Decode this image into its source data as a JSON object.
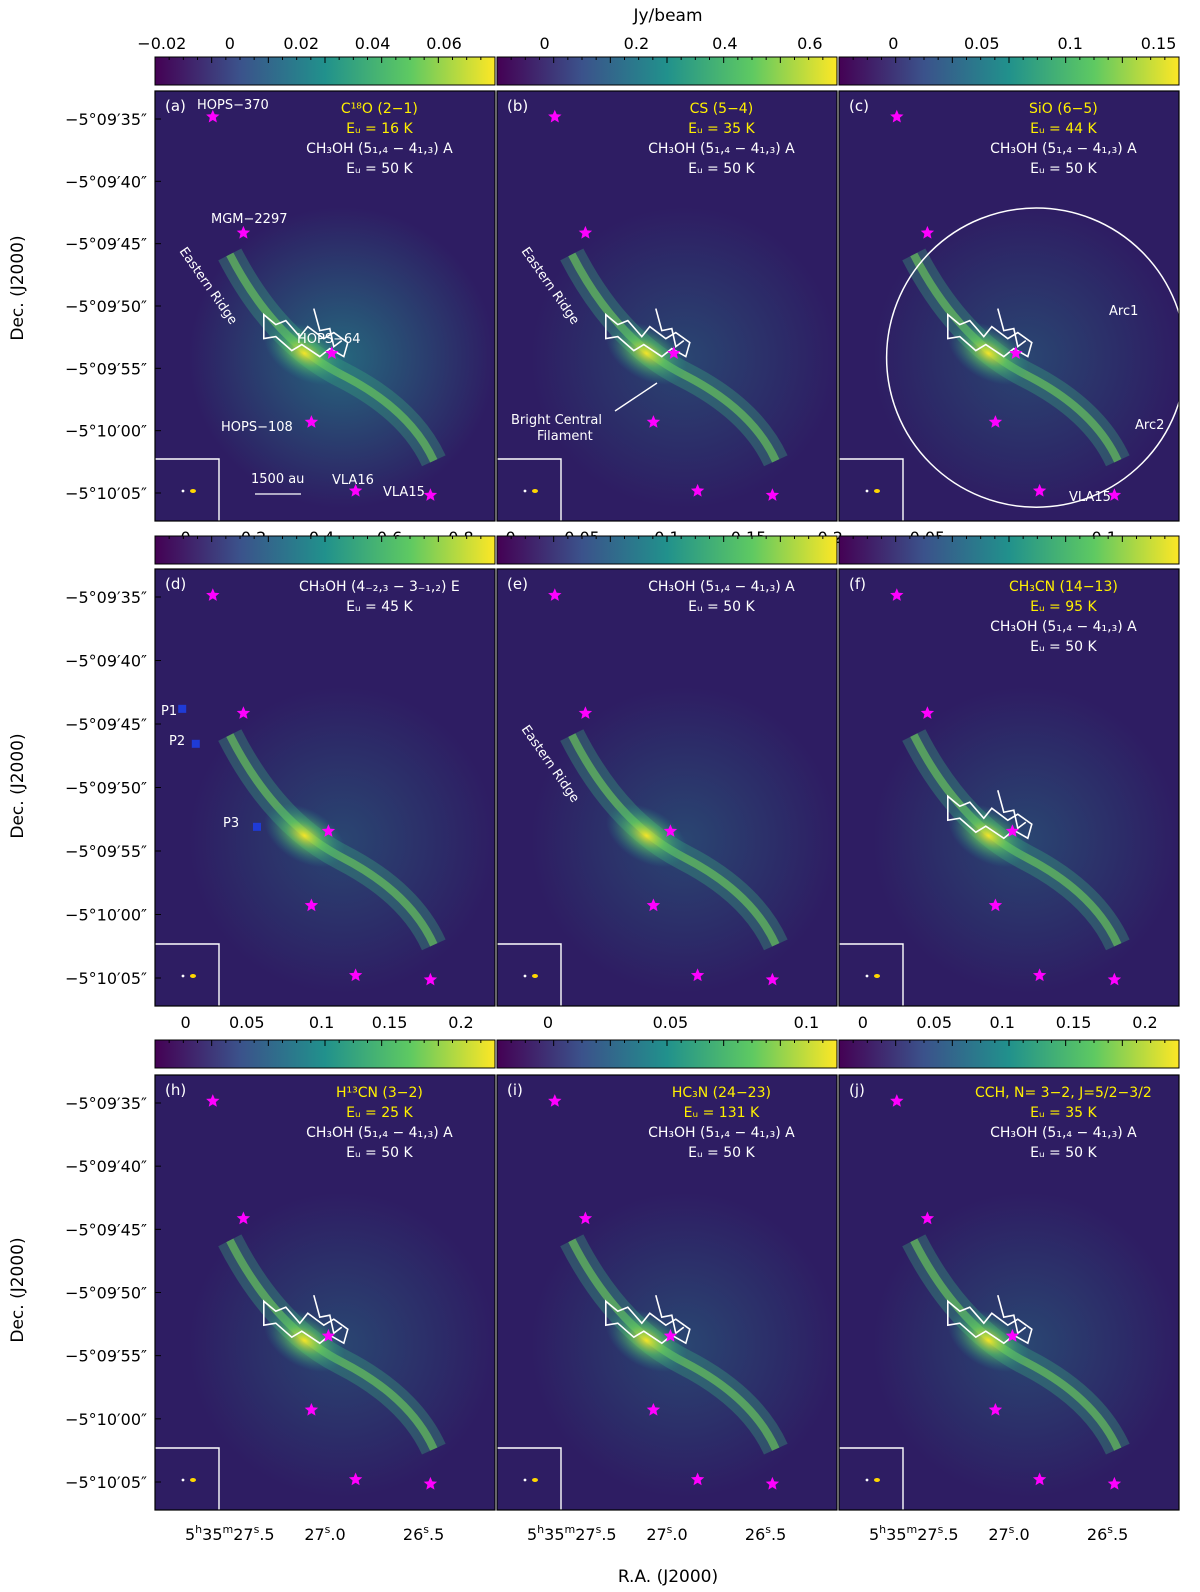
{
  "cbar_unit": "Jy/beam",
  "xlabel": "R.A. (J2000)",
  "ylabel": "Dec. (J2000)",
  "dec_ticks": [
    "−5°09′35″",
    "−5°09′40″",
    "−5°09′45″",
    "−5°09′50″",
    "−5°09′55″",
    "−5°10′00″",
    "−5°10′05″"
  ],
  "ra_ticks": [
    {
      "main": "5",
      "parts": [
        [
          "h",
          "35"
        ],
        [
          "m",
          "27"
        ],
        [
          "s",
          ".5"
        ]
      ]
    },
    {
      "main": "27",
      "parts": [
        [
          "s",
          ".0"
        ]
      ]
    },
    {
      "main": "26",
      "parts": [
        [
          "s",
          ".5"
        ]
      ]
    }
  ],
  "panels": [
    {
      "tag": "(a)",
      "cbar_ticks": [
        "−0.02",
        "0",
        "0.02",
        "0.04",
        "0.06"
      ],
      "lines": [
        {
          "text": "C¹⁸O (2−1)",
          "color": "yellow"
        },
        {
          "text": "Eᵤ = 16 K",
          "color": "yellow"
        },
        {
          "text": "CH₃OH (5₁,₄ − 4₁,₃) A",
          "color": "white"
        },
        {
          "text": "Eᵤ = 50 K",
          "color": "white"
        }
      ],
      "labels": [
        "HOPS−370",
        "MGM−2297",
        "Eastern Ridge",
        "HOPS−64",
        "HOPS−108",
        "VLA16",
        "VLA15",
        "1500 au"
      ]
    },
    {
      "tag": "(b)",
      "cbar_ticks": [
        "0",
        "0.2",
        "0.4",
        "0.6"
      ],
      "lines": [
        {
          "text": "CS (5−4)",
          "color": "yellow"
        },
        {
          "text": "Eᵤ = 35 K",
          "color": "yellow"
        },
        {
          "text": "CH₃OH (5₁,₄ − 4₁,₃) A",
          "color": "white"
        },
        {
          "text": "Eᵤ = 50 K",
          "color": "white"
        }
      ],
      "labels": [
        "Eastern Ridge",
        "Bright Central",
        "Filament"
      ]
    },
    {
      "tag": "(c)",
      "cbar_ticks": [
        "0",
        "0.05",
        "0.1",
        "0.15"
      ],
      "lines": [
        {
          "text": "SiO (6−5)",
          "color": "yellow"
        },
        {
          "text": "Eᵤ = 44 K",
          "color": "yellow"
        },
        {
          "text": "CH₃OH (5₁,₄ − 4₁,₃) A",
          "color": "white"
        },
        {
          "text": "Eᵤ = 50 K",
          "color": "white"
        }
      ],
      "labels": [
        "Arc1",
        "Arc2",
        "VLA15"
      ]
    },
    {
      "tag": "(d)",
      "cbar_ticks": [
        "0",
        "0.05",
        "0.1",
        "0.15",
        "0.2"
      ],
      "lines": [
        {
          "text": "CH₃OH (4₋₂,₃ − 3₋₁,₂) E",
          "color": "white"
        },
        {
          "text": "Eᵤ = 45 K",
          "color": "white"
        }
      ],
      "labels": [
        "P1",
        "P2",
        "P3"
      ]
    },
    {
      "tag": "(e)",
      "cbar_ticks": [
        "0",
        "0.05",
        "0.1"
      ],
      "lines": [
        {
          "text": "CH₃OH (5₁,₄ − 4₁,₃) A",
          "color": "white"
        },
        {
          "text": "Eᵤ = 50 K",
          "color": "white"
        }
      ],
      "labels": [
        "Eastern Ridge"
      ]
    },
    {
      "tag": "(f)",
      "cbar_ticks": [
        "0",
        "0.05",
        "0.1",
        "0.15",
        "0.2"
      ],
      "lines": [
        {
          "text": "CH₃CN (14−13)",
          "color": "yellow"
        },
        {
          "text": "Eᵤ = 95 K",
          "color": "yellow"
        },
        {
          "text": "CH₃OH (5₁,₄ − 4₁,₃) A",
          "color": "white"
        },
        {
          "text": "Eᵤ = 50 K",
          "color": "white"
        }
      ],
      "labels": []
    },
    {
      "tag": "(h)",
      "cbar_ticks": [],
      "lines": [
        {
          "text": "H¹³CN (3−2)",
          "color": "yellow"
        },
        {
          "text": "Eᵤ = 25 K",
          "color": "yellow"
        },
        {
          "text": "CH₃OH (5₁,₄ − 4₁,₃) A",
          "color": "white"
        },
        {
          "text": "Eᵤ = 50 K",
          "color": "white"
        }
      ],
      "labels": []
    },
    {
      "tag": "(i)",
      "cbar_ticks": [],
      "lines": [
        {
          "text": "HC₃N (24−23)",
          "color": "yellow"
        },
        {
          "text": "Eᵤ = 131 K",
          "color": "yellow"
        },
        {
          "text": "CH₃OH (5₁,₄ − 4₁,₃) A",
          "color": "white"
        },
        {
          "text": "Eᵤ = 50 K",
          "color": "white"
        }
      ],
      "labels": []
    },
    {
      "tag": "(j)",
      "cbar_ticks": [],
      "lines": [
        {
          "text": "CCH, N= 3−2, J=5/2−3/2",
          "color": "yellow"
        },
        {
          "text": "Eᵤ = 35 K",
          "color": "yellow"
        },
        {
          "text": "CH₃OH (5₁,₄ − 4₁,₃) A",
          "color": "white"
        },
        {
          "text": "Eᵤ = 50 K",
          "color": "white"
        }
      ],
      "labels": []
    }
  ],
  "colors": {
    "cmap": [
      "#440154",
      "#3b528b",
      "#21918c",
      "#5ec962",
      "#fde725"
    ],
    "star": "#ff00ff",
    "marker": "#1f3bd6",
    "label_yellow": "#fff000",
    "background": "#2e1d63"
  }
}
